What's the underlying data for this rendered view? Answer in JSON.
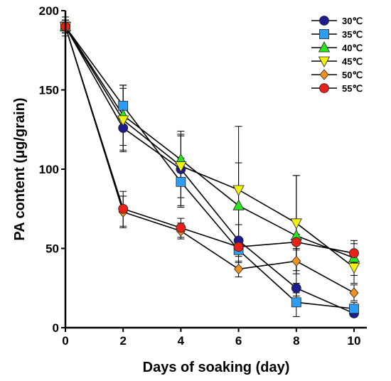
{
  "chart_data": {
    "type": "line",
    "title": "",
    "xlabel": "Days of soaking (day)",
    "ylabel": "PA content (μg/grain)",
    "xlim": [
      0,
      10
    ],
    "ylim": [
      0,
      200
    ],
    "x_ticks": [
      "0",
      "2",
      "4",
      "6",
      "8",
      "10"
    ],
    "y_ticks": [
      "0",
      "50",
      "100",
      "150",
      "200"
    ],
    "x": [
      0,
      2,
      4,
      6,
      8,
      10
    ],
    "legend_position": "top-right",
    "grid": false,
    "series": [
      {
        "name": "30℃",
        "marker": "circle",
        "color": "#1c1c8c",
        "values": [
          190,
          126,
          100,
          55,
          25,
          9
        ],
        "errors": [
          6,
          14,
          24,
          10,
          3,
          2
        ]
      },
      {
        "name": "35℃",
        "marker": "square",
        "color": "#2e9cf2",
        "values": [
          190,
          140,
          92,
          49,
          16,
          12
        ],
        "errors": [
          4,
          13,
          15,
          8,
          9,
          4
        ]
      },
      {
        "name": "40℃",
        "marker": "triangle-up",
        "color": "#28e61e",
        "values": [
          190,
          134,
          106,
          77,
          58,
          44
        ],
        "errors": [
          4,
          19,
          15,
          27,
          38,
          11
        ]
      },
      {
        "name": "45℃",
        "marker": "triangle-down",
        "color": "#f2f20c",
        "values": [
          190,
          131,
          102,
          87,
          66,
          38
        ],
        "errors": [
          4,
          20,
          20,
          40,
          30,
          10
        ]
      },
      {
        "name": "50℃",
        "marker": "diamond",
        "color": "#f2921e",
        "values": [
          190,
          73,
          61,
          37,
          42,
          22
        ],
        "errors": [
          4,
          10,
          5,
          5,
          8,
          5
        ]
      },
      {
        "name": "55℃",
        "marker": "circle",
        "color": "#e8211b",
        "values": [
          190,
          75,
          63,
          51,
          54,
          47
        ],
        "errors": [
          4,
          11,
          6,
          4,
          5,
          6
        ]
      }
    ]
  }
}
